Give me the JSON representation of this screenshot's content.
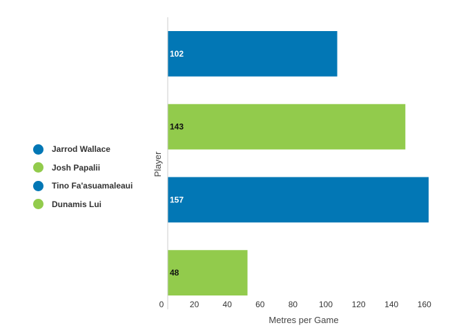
{
  "chart_data": {
    "type": "bar",
    "orientation": "horizontal",
    "categories": [
      "Jarrod Wallace",
      "Josh Papalii",
      "Tino Fa'asuamaleaui",
      "Dunamis Lui"
    ],
    "values": [
      102,
      143,
      157,
      48
    ],
    "value_labels": [
      "102",
      "143",
      "157",
      "48"
    ],
    "xlabel": "Metres per Game",
    "ylabel": "Player",
    "xlim": [
      0,
      160
    ],
    "xticks": [
      "0",
      "20",
      "40",
      "60",
      "80",
      "100",
      "120",
      "140",
      "160"
    ],
    "legend_position": "left",
    "grid": false
  },
  "colors": {
    "blue": "#0277b5",
    "green": "#92cb4c",
    "label_on_blue": "#ffffff",
    "label_on_green": "#111111",
    "axis": "#cccccc",
    "tick_text": "#333333"
  },
  "bar_colors": [
    "blue",
    "green",
    "blue",
    "green"
  ]
}
